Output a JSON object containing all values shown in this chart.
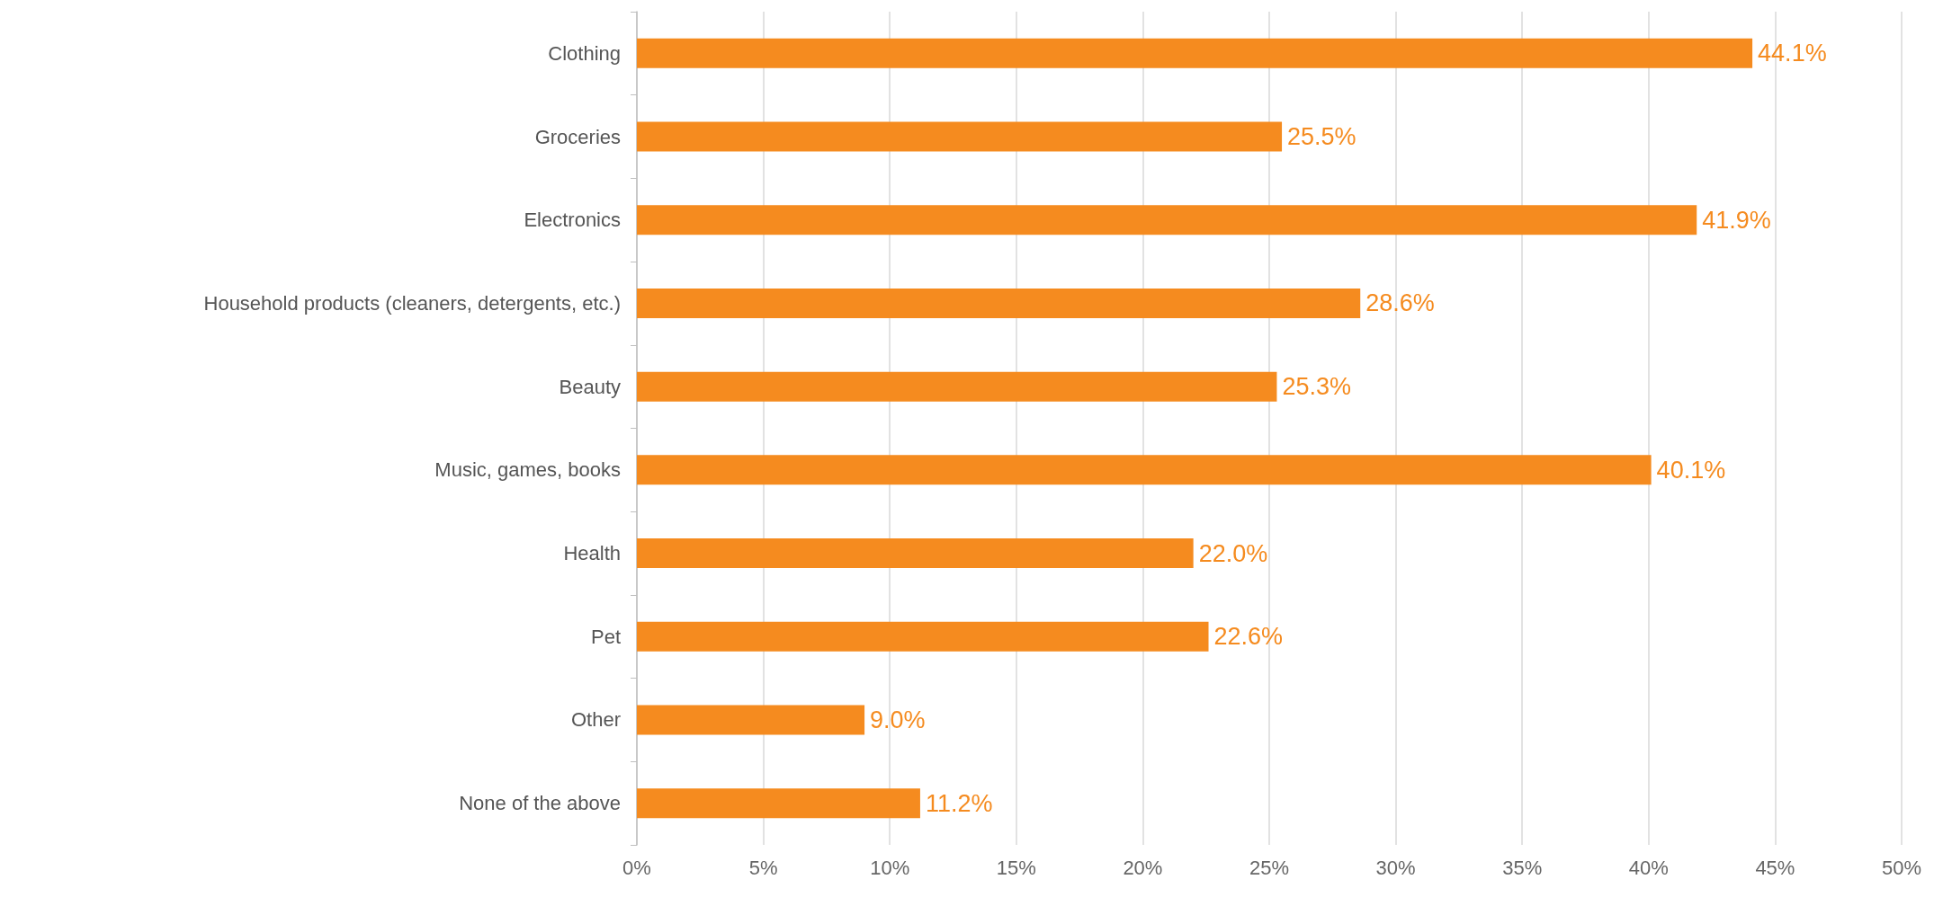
{
  "chart_data": {
    "type": "bar",
    "orientation": "horizontal",
    "categories": [
      "Clothing",
      "Groceries",
      "Electronics",
      "Household products (cleaners, detergents, etc.)",
      "Beauty",
      "Music, games, books",
      "Health",
      "Pet",
      "Other",
      "None of the above"
    ],
    "values": [
      44.1,
      25.5,
      41.9,
      28.6,
      25.3,
      40.1,
      22.0,
      22.6,
      9.0,
      11.2
    ],
    "value_labels": [
      "44.1%",
      "25.5%",
      "41.9%",
      "28.6%",
      "25.3%",
      "40.1%",
      "22.0%",
      "22.6%",
      "9.0%",
      "11.2%"
    ],
    "color": "#f58b1f",
    "xlim": [
      0,
      50
    ],
    "xticks": [
      {
        "value": 0,
        "label": "0%"
      },
      {
        "value": 5,
        "label": "5%"
      },
      {
        "value": 10,
        "label": "10%"
      },
      {
        "value": 15,
        "label": "15%"
      },
      {
        "value": 20,
        "label": "20%"
      },
      {
        "value": 25,
        "label": "25%"
      },
      {
        "value": 30,
        "label": "30%"
      },
      {
        "value": 35,
        "label": "35%"
      },
      {
        "value": 40,
        "label": "40%"
      },
      {
        "value": 45,
        "label": "45%"
      },
      {
        "value": 50,
        "label": "50%"
      }
    ],
    "grid": "x"
  }
}
